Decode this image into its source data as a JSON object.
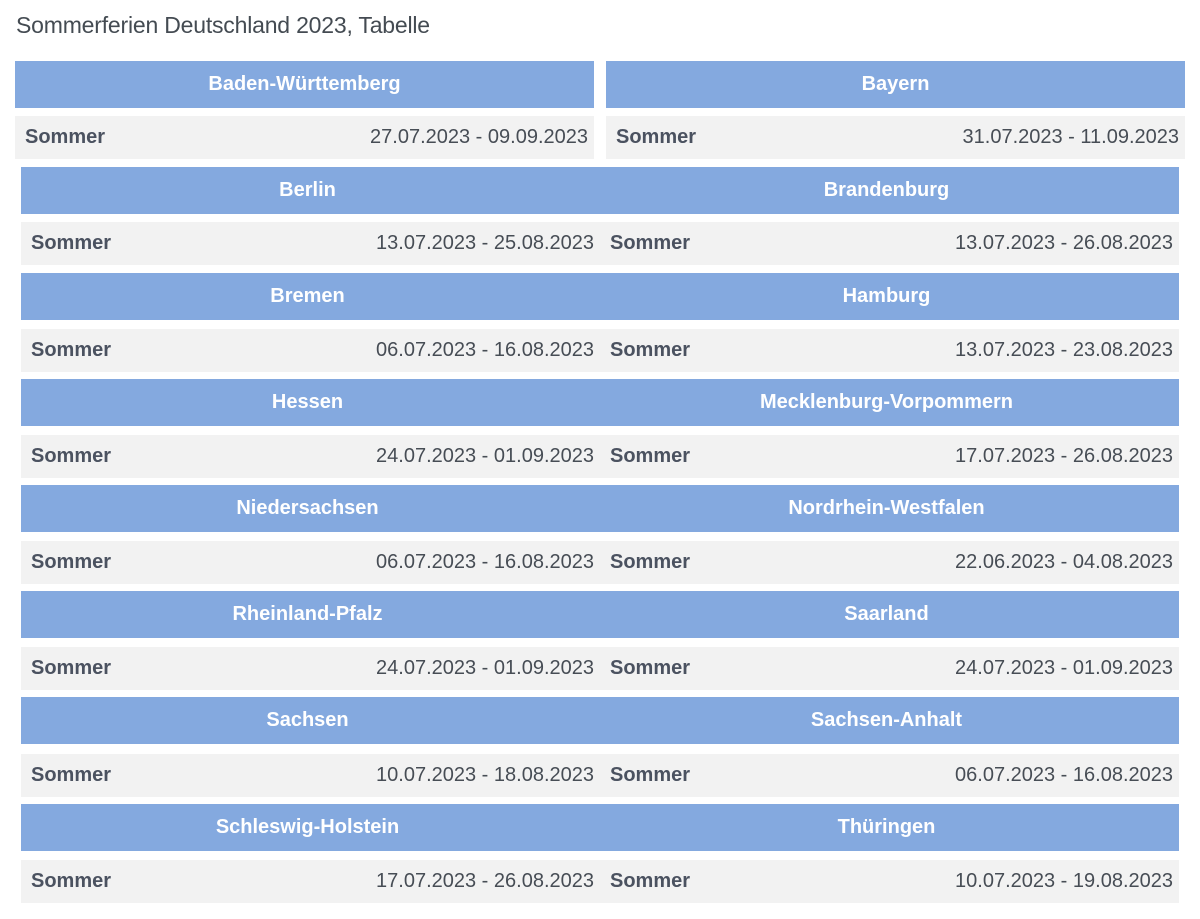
{
  "title": "Sommerferien Deutschland 2023, Tabelle",
  "states": [
    {
      "name": "Baden-Württemberg",
      "label": "Sommer",
      "dates": "27.07.2023 - 09.09.2023"
    },
    {
      "name": "Bayern",
      "label": "Sommer",
      "dates": "31.07.2023 - 11.09.2023"
    },
    {
      "name": "Berlin",
      "label": "Sommer",
      "dates": "13.07.2023 - 25.08.2023"
    },
    {
      "name": "Brandenburg",
      "label": "Sommer",
      "dates": "13.07.2023 - 26.08.2023"
    },
    {
      "name": "Bremen",
      "label": "Sommer",
      "dates": "06.07.2023 - 16.08.2023"
    },
    {
      "name": "Hamburg",
      "label": "Sommer",
      "dates": "13.07.2023 - 23.08.2023"
    },
    {
      "name": "Hessen",
      "label": "Sommer",
      "dates": "24.07.2023 - 01.09.2023"
    },
    {
      "name": "Mecklenburg-Vorpommern",
      "label": "Sommer",
      "dates": "17.07.2023 - 26.08.2023"
    },
    {
      "name": "Niedersachsen",
      "label": "Sommer",
      "dates": "06.07.2023 - 16.08.2023"
    },
    {
      "name": "Nordrhein-Westfalen",
      "label": "Sommer",
      "dates": "22.06.2023 - 04.08.2023"
    },
    {
      "name": "Rheinland-Pfalz",
      "label": "Sommer",
      "dates": "24.07.2023 - 01.09.2023"
    },
    {
      "name": "Saarland",
      "label": "Sommer",
      "dates": "24.07.2023 - 01.09.2023"
    },
    {
      "name": "Sachsen",
      "label": "Sommer",
      "dates": "10.07.2023 - 18.08.2023"
    },
    {
      "name": "Sachsen-Anhalt",
      "label": "Sommer",
      "dates": "06.07.2023 - 16.08.2023"
    },
    {
      "name": "Schleswig-Holstein",
      "label": "Sommer",
      "dates": "17.07.2023 - 26.08.2023"
    },
    {
      "name": "Thüringen",
      "label": "Sommer",
      "dates": "10.07.2023 - 19.08.2023"
    }
  ]
}
